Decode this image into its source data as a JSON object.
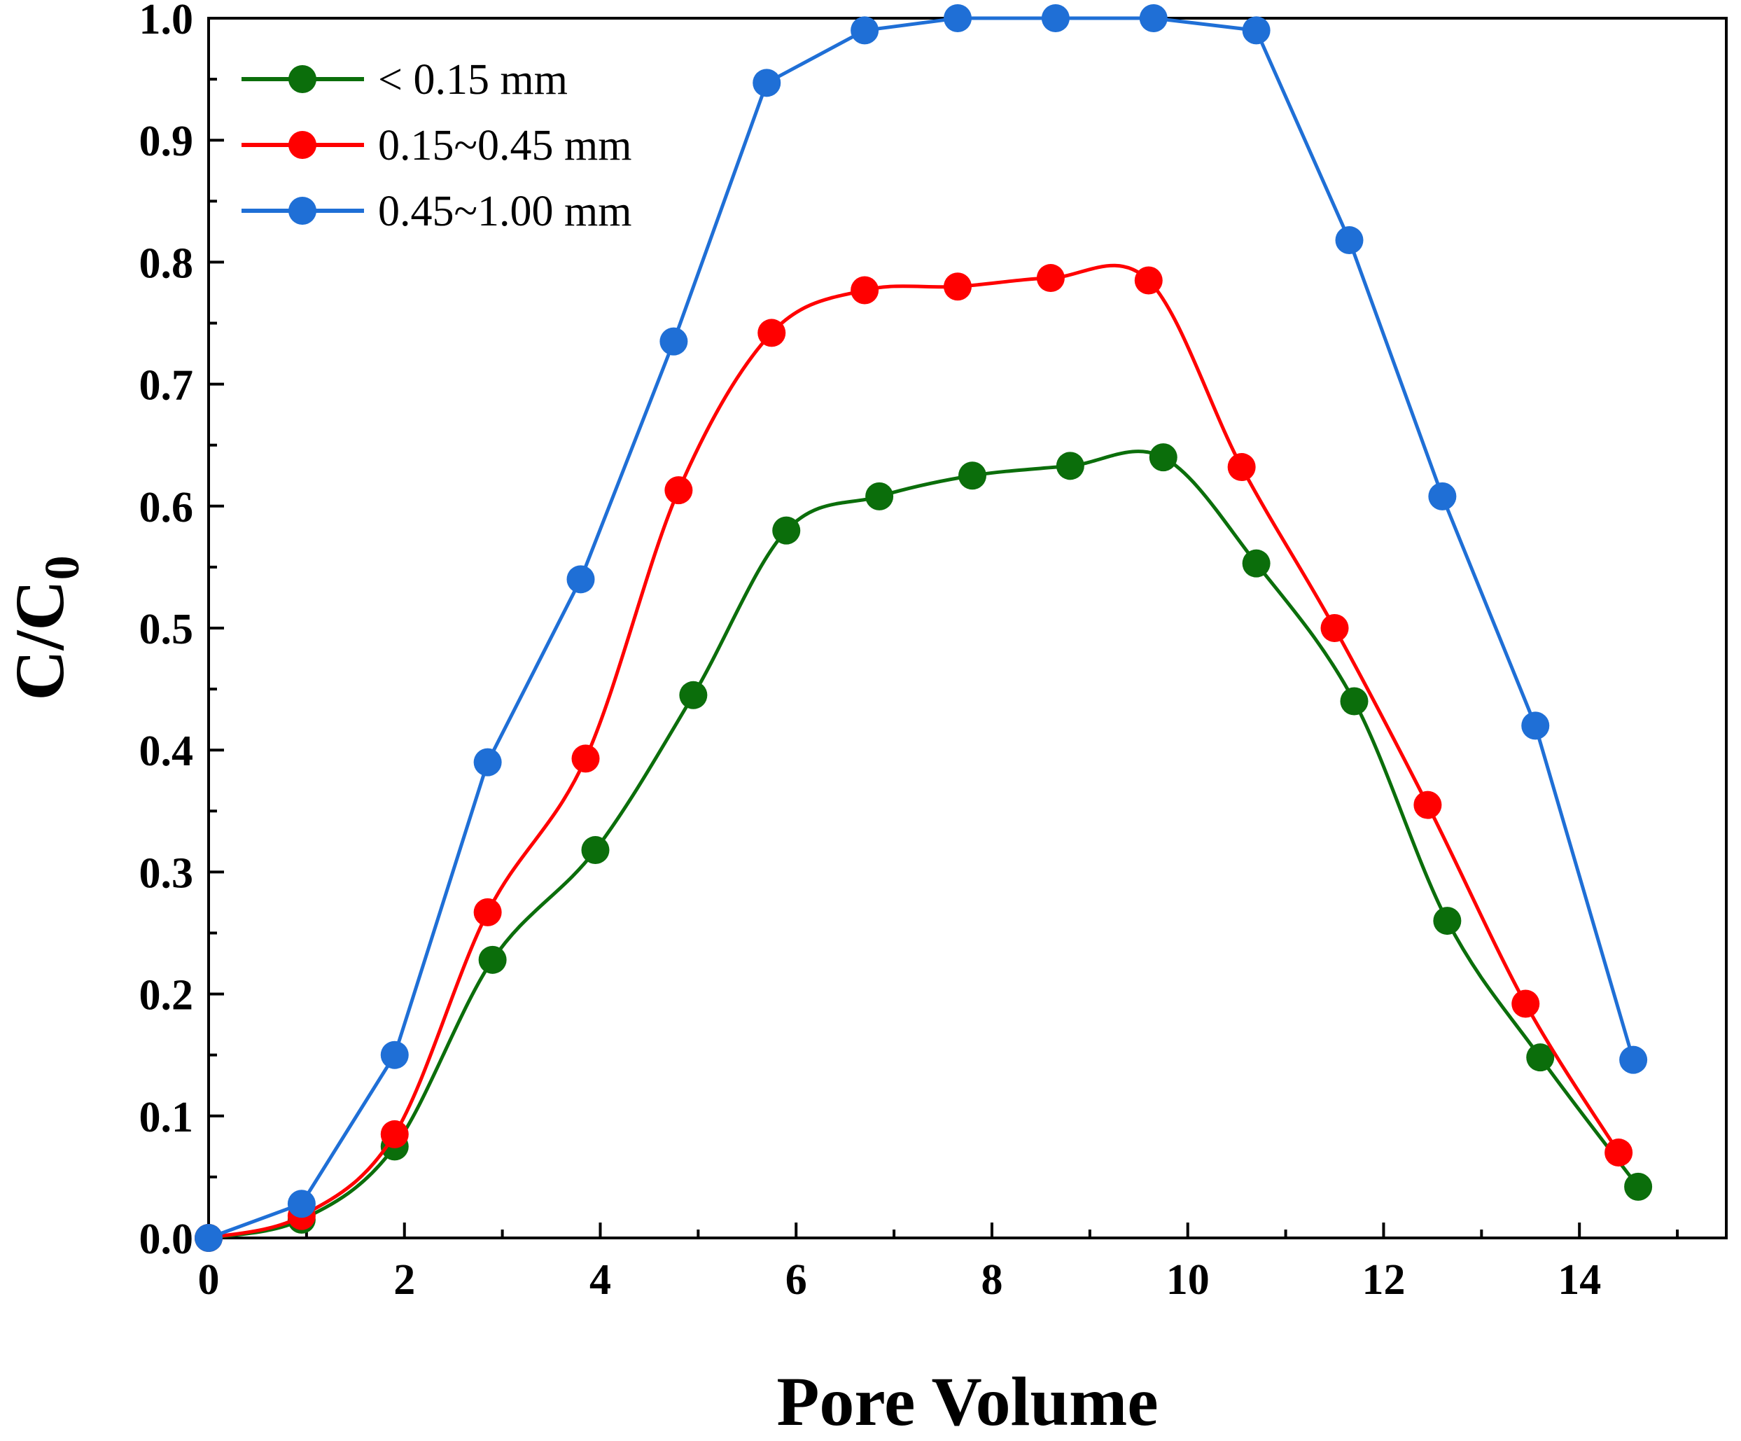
{
  "chart_data": {
    "type": "line",
    "xlabel": "Pore Volume",
    "ylabel": {
      "main": "C/C",
      "sub": "0"
    },
    "xlim": [
      0,
      15.5
    ],
    "ylim": [
      0,
      1.0
    ],
    "xticks": [
      0,
      2,
      4,
      6,
      8,
      10,
      12,
      14
    ],
    "xtick_labels": [
      "0",
      "2",
      "4",
      "6",
      "8",
      "10",
      "12",
      "14"
    ],
    "yticks": [
      0.0,
      0.1,
      0.2,
      0.3,
      0.4,
      0.5,
      0.6,
      0.7,
      0.8,
      0.9,
      1.0
    ],
    "ytick_labels": [
      "0.0",
      "0.1",
      "0.2",
      "0.3",
      "0.4",
      "0.5",
      "0.6",
      "0.7",
      "0.8",
      "0.9",
      "1.0"
    ],
    "legend_position": "top-left",
    "grid": false,
    "series": [
      {
        "name": "< 0.15 mm",
        "color": "#0b6e0b",
        "smooth": true,
        "x": [
          0,
          0.95,
          1.9,
          2.9,
          3.95,
          4.95,
          5.9,
          6.85,
          7.8,
          8.8,
          9.75,
          10.7,
          11.7,
          12.65,
          13.6,
          14.6
        ],
        "y": [
          0.0,
          0.015,
          0.075,
          0.228,
          0.318,
          0.445,
          0.58,
          0.608,
          0.625,
          0.633,
          0.64,
          0.553,
          0.44,
          0.26,
          0.148,
          0.042
        ]
      },
      {
        "name": "0.15~0.45 mm",
        "color": "#ff0000",
        "smooth": true,
        "x": [
          0,
          0.95,
          1.9,
          2.85,
          3.85,
          4.8,
          5.75,
          6.7,
          7.65,
          8.6,
          9.6,
          10.55,
          11.5,
          12.45,
          13.45,
          14.4
        ],
        "y": [
          0.0,
          0.018,
          0.085,
          0.267,
          0.393,
          0.613,
          0.742,
          0.777,
          0.78,
          0.787,
          0.785,
          0.632,
          0.5,
          0.355,
          0.192,
          0.07
        ]
      },
      {
        "name": "0.45~1.00 mm",
        "color": "#1f6fd6",
        "smooth": false,
        "x": [
          0,
          0.95,
          1.9,
          2.85,
          3.8,
          4.75,
          5.7,
          6.7,
          7.65,
          8.65,
          9.65,
          10.7,
          11.65,
          12.6,
          13.55,
          14.55
        ],
        "y": [
          0.0,
          0.028,
          0.15,
          0.39,
          0.54,
          0.735,
          0.947,
          0.99,
          1.0,
          1.0,
          1.0,
          0.99,
          0.818,
          0.608,
          0.42,
          0.146
        ]
      }
    ]
  }
}
